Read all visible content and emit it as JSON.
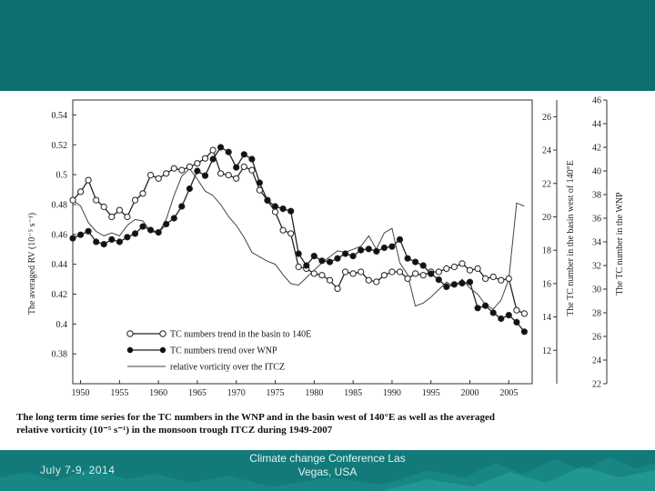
{
  "slide": {
    "caption_line1": "The long term time series for the TC numbers in the WNP and in the basin west of 140°E as well as the averaged",
    "caption_line2": "relative vorticity (10⁻⁵ s⁻¹) in the monsoon trough ITCZ during 1949-2007",
    "footer_date": "July 7-9, 2014",
    "footer_title": "Climate change Conference Las Vegas, USA",
    "colors": {
      "banner": "#0f6e6e",
      "footer": "#127a78"
    }
  },
  "chart_data": {
    "type": "line",
    "x": [
      1949,
      1950,
      1951,
      1952,
      1953,
      1954,
      1955,
      1956,
      1957,
      1958,
      1959,
      1960,
      1961,
      1962,
      1963,
      1964,
      1965,
      1966,
      1967,
      1968,
      1969,
      1970,
      1971,
      1972,
      1973,
      1974,
      1975,
      1976,
      1977,
      1978,
      1979,
      1980,
      1981,
      1982,
      1983,
      1984,
      1985,
      1986,
      1987,
      1988,
      1989,
      1990,
      1991,
      1992,
      1993,
      1994,
      1995,
      1996,
      1997,
      1998,
      1999,
      2000,
      2001,
      2002,
      2003,
      2004,
      2005,
      2006,
      2007
    ],
    "xticks": [
      "1950",
      "1955",
      "1960",
      "1965",
      "1970",
      "1975",
      "1980",
      "1985",
      "1990",
      "1995",
      "2000",
      "2005"
    ],
    "xlim": [
      1949,
      2008
    ],
    "left_axis": {
      "label": "The averaged RV (10⁻⁵ s⁻¹)",
      "ticks": [
        "0.54",
        "0.52",
        "0.5",
        "0.48",
        "0.46",
        "0.44",
        "0.42",
        "0.4",
        "0.38"
      ],
      "lim": [
        0.36,
        0.55
      ]
    },
    "right_axis_1": {
      "label": "The TC number in the basin west of 140°E",
      "ticks": [
        "26",
        "24",
        "22",
        "20",
        "18",
        "16",
        "14",
        "12"
      ],
      "lim": [
        10,
        27
      ]
    },
    "right_axis_2": {
      "label": "The TC number in the WNP",
      "ticks": [
        "46",
        "44",
        "42",
        "40",
        "38",
        "36",
        "34",
        "32",
        "30",
        "28",
        "26",
        "24",
        "22"
      ],
      "lim": [
        22,
        46
      ]
    },
    "legend_position": "lower-left",
    "series": [
      {
        "name": "TC numbers trend in the basin to 140E",
        "axis": "right_axis_1",
        "marker": "open-circle",
        "values": [
          21.0,
          21.5,
          22.2,
          21.0,
          20.6,
          20.0,
          20.4,
          20.0,
          21.0,
          21.4,
          22.5,
          22.3,
          22.6,
          22.9,
          22.8,
          23.0,
          23.2,
          23.5,
          24.0,
          22.6,
          22.5,
          22.3,
          23.0,
          22.8,
          21.6,
          21.0,
          20.3,
          19.2,
          19.0,
          17.0,
          16.9,
          16.6,
          16.5,
          16.2,
          15.7,
          16.7,
          16.6,
          16.7,
          16.2,
          16.1,
          16.5,
          16.7,
          16.7,
          16.3,
          16.6,
          16.5,
          16.7,
          16.7,
          16.9,
          17.0,
          17.2,
          16.8,
          16.9,
          16.3,
          16.4,
          16.2,
          16.3,
          14.4,
          14.2
        ]
      },
      {
        "name": "TC numbers trend over WNP",
        "axis": "right_axis_2",
        "marker": "filled-circle",
        "values": [
          34.3,
          34.6,
          34.9,
          34.0,
          33.8,
          34.2,
          34.0,
          34.4,
          34.7,
          35.3,
          35.0,
          34.8,
          35.5,
          36.0,
          37.0,
          38.5,
          40.0,
          39.6,
          41.0,
          42.0,
          41.6,
          40.3,
          41.4,
          41.0,
          39.0,
          37.5,
          37.0,
          36.8,
          36.6,
          33.0,
          32.0,
          32.8,
          32.4,
          32.3,
          32.6,
          33.0,
          32.8,
          33.3,
          33.4,
          33.2,
          33.5,
          33.6,
          34.2,
          32.6,
          32.3,
          32.0,
          31.3,
          30.8,
          30.2,
          30.4,
          30.5,
          30.6,
          28.4,
          28.6,
          28.0,
          27.5,
          27.8,
          27.2,
          26.4
        ]
      },
      {
        "name": "relative vorticity over the ITCZ",
        "axis": "left_axis",
        "marker": "none",
        "values": [
          0.483,
          0.479,
          0.468,
          0.462,
          0.459,
          0.461,
          0.459,
          0.466,
          0.47,
          0.469,
          0.462,
          0.461,
          0.47,
          0.486,
          0.499,
          0.504,
          0.497,
          0.489,
          0.486,
          0.48,
          0.472,
          0.466,
          0.458,
          0.448,
          0.445,
          0.442,
          0.44,
          0.433,
          0.427,
          0.426,
          0.431,
          0.436,
          0.441,
          0.445,
          0.449,
          0.448,
          0.45,
          0.452,
          0.459,
          0.45,
          0.461,
          0.464,
          0.441,
          0.433,
          0.412,
          0.414,
          0.418,
          0.423,
          0.428,
          0.425,
          0.43,
          0.424,
          0.42,
          0.413,
          0.41,
          0.416,
          0.43,
          0.481,
          0.479
        ]
      }
    ]
  }
}
